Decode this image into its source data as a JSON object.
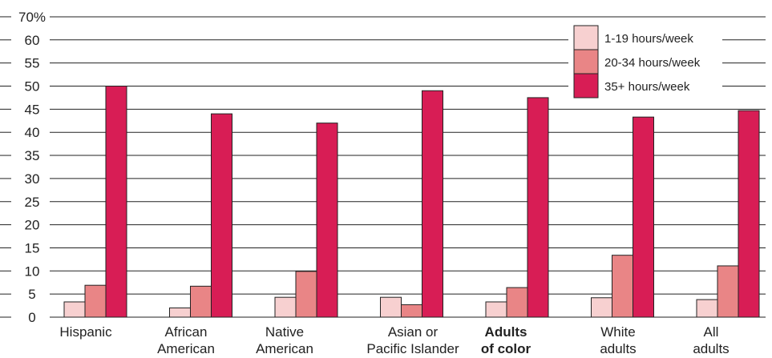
{
  "chart_data": {
    "type": "bar",
    "categories": [
      [
        "Hispanic"
      ],
      [
        "African",
        "American"
      ],
      [
        "Native",
        "American"
      ],
      [
        "Asian or",
        "Pacific Islander"
      ],
      [
        "Adults",
        "of color"
      ],
      [
        "White",
        "adults"
      ],
      [
        "All",
        "adults"
      ]
    ],
    "highlight_category_index": 4,
    "y_ticks": [
      "0",
      "5",
      "10",
      "15",
      "20",
      "25",
      "30",
      "35",
      "40",
      "45",
      "50",
      "55",
      "60",
      "70%"
    ],
    "ylim": [
      0,
      65
    ],
    "grid": true,
    "legend_position": "top-right",
    "series": [
      {
        "name": "1-19 hours/week",
        "color": "#f7d0d0",
        "values": [
          3.3,
          2.0,
          4.3,
          4.3,
          3.3,
          4.2,
          3.8
        ]
      },
      {
        "name": "20-34 hours/week",
        "color": "#e98586",
        "values": [
          6.9,
          6.7,
          9.9,
          2.7,
          6.4,
          13.4,
          11.1
        ]
      },
      {
        "name": "35+ hours/week",
        "color": "#d81d55",
        "values": [
          50.0,
          44.0,
          42.0,
          49.0,
          47.5,
          43.3,
          44.7
        ]
      }
    ]
  }
}
